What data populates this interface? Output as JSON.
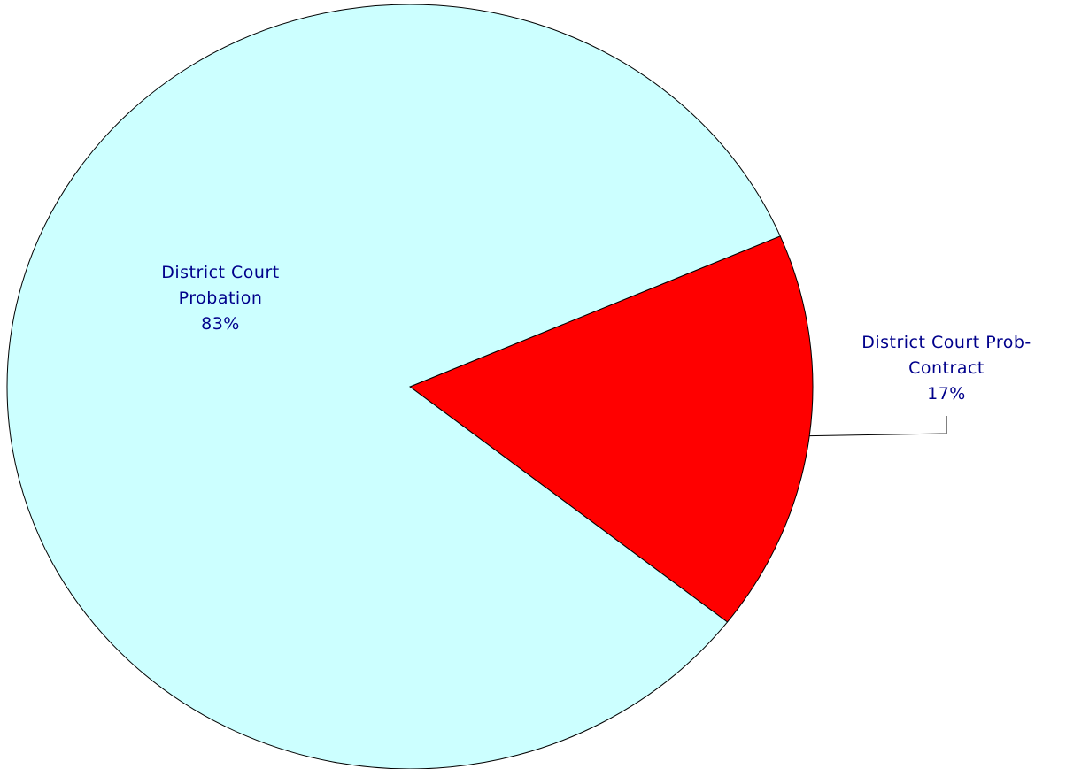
{
  "chart_data": {
    "type": "pie",
    "title": "",
    "slices": [
      {
        "label_lines": [
          "District Court",
          "Probation"
        ],
        "percent_label": "83%",
        "value": 83,
        "color": "#ccffff"
      },
      {
        "label_lines": [
          "District Court Prob-",
          "Contract"
        ],
        "percent_label": "17%",
        "value": 17,
        "color": "#ff0000"
      }
    ],
    "label_color": "#00008b",
    "legend": "none"
  }
}
